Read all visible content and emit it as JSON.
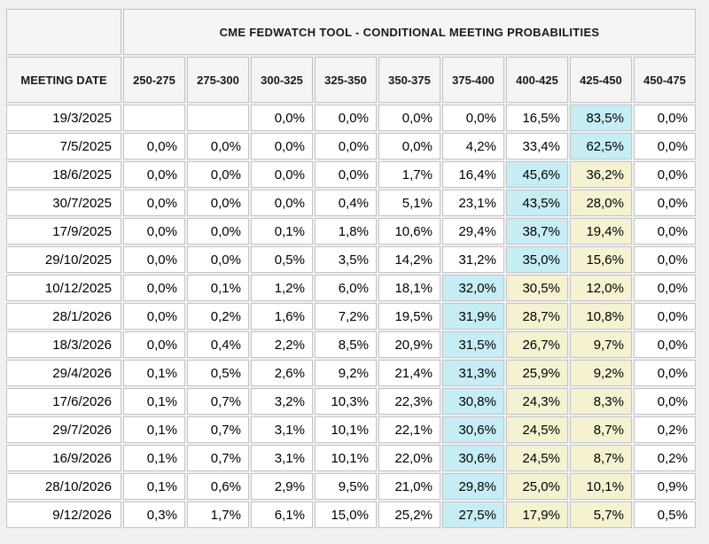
{
  "page": {
    "background_color": "#f0f0f1"
  },
  "colors": {
    "page_bg": "#f0f0f1",
    "header_bg": "#f5f5f6",
    "cell_bg": "#ffffff",
    "cell_border": "#c3c3c7",
    "blue_highlight": "#c6edf4",
    "yellow_highlight": "#f5f2d2",
    "text": "#000000"
  },
  "chart_data": {
    "type": "table",
    "title": "CME FEDWATCH TOOL - CONDITIONAL MEETING PROBABILITIES",
    "date_column_header": "MEETING DATE",
    "rate_columns": [
      "250-275",
      "275-300",
      "300-325",
      "325-350",
      "350-375",
      "375-400",
      "400-425",
      "425-450",
      "450-475"
    ],
    "value_format": "percent with comma decimal separator",
    "rows": [
      {
        "date": "19/3/2025",
        "values": [
          "",
          "",
          "0,0%",
          "0,0%",
          "0,0%",
          "0,0%",
          "16,5%",
          "83,5%",
          "0,0%"
        ],
        "highlights": [
          "",
          "",
          "",
          "",
          "",
          "",
          "",
          "blue",
          ""
        ]
      },
      {
        "date": "7/5/2025",
        "values": [
          "0,0%",
          "0,0%",
          "0,0%",
          "0,0%",
          "0,0%",
          "4,2%",
          "33,4%",
          "62,5%",
          "0,0%"
        ],
        "highlights": [
          "",
          "",
          "",
          "",
          "",
          "",
          "",
          "blue",
          ""
        ]
      },
      {
        "date": "18/6/2025",
        "values": [
          "0,0%",
          "0,0%",
          "0,0%",
          "0,0%",
          "1,7%",
          "16,4%",
          "45,6%",
          "36,2%",
          "0,0%"
        ],
        "highlights": [
          "",
          "",
          "",
          "",
          "",
          "",
          "blue",
          "yellow",
          ""
        ]
      },
      {
        "date": "30/7/2025",
        "values": [
          "0,0%",
          "0,0%",
          "0,0%",
          "0,4%",
          "5,1%",
          "23,1%",
          "43,5%",
          "28,0%",
          "0,0%"
        ],
        "highlights": [
          "",
          "",
          "",
          "",
          "",
          "",
          "blue",
          "yellow",
          ""
        ]
      },
      {
        "date": "17/9/2025",
        "values": [
          "0,0%",
          "0,0%",
          "0,1%",
          "1,8%",
          "10,6%",
          "29,4%",
          "38,7%",
          "19,4%",
          "0,0%"
        ],
        "highlights": [
          "",
          "",
          "",
          "",
          "",
          "",
          "blue",
          "yellow",
          ""
        ]
      },
      {
        "date": "29/10/2025",
        "values": [
          "0,0%",
          "0,0%",
          "0,5%",
          "3,5%",
          "14,2%",
          "31,2%",
          "35,0%",
          "15,6%",
          "0,0%"
        ],
        "highlights": [
          "",
          "",
          "",
          "",
          "",
          "",
          "blue",
          "yellow",
          ""
        ]
      },
      {
        "date": "10/12/2025",
        "values": [
          "0,0%",
          "0,1%",
          "1,2%",
          "6,0%",
          "18,1%",
          "32,0%",
          "30,5%",
          "12,0%",
          "0,0%"
        ],
        "highlights": [
          "",
          "",
          "",
          "",
          "",
          "blue",
          "yellow",
          "yellow",
          ""
        ]
      },
      {
        "date": "28/1/2026",
        "values": [
          "0,0%",
          "0,2%",
          "1,6%",
          "7,2%",
          "19,5%",
          "31,9%",
          "28,7%",
          "10,8%",
          "0,0%"
        ],
        "highlights": [
          "",
          "",
          "",
          "",
          "",
          "blue",
          "yellow",
          "yellow",
          ""
        ]
      },
      {
        "date": "18/3/2026",
        "values": [
          "0,0%",
          "0,4%",
          "2,2%",
          "8,5%",
          "20,9%",
          "31,5%",
          "26,7%",
          "9,7%",
          "0,0%"
        ],
        "highlights": [
          "",
          "",
          "",
          "",
          "",
          "blue",
          "yellow",
          "yellow",
          ""
        ]
      },
      {
        "date": "29/4/2026",
        "values": [
          "0,1%",
          "0,5%",
          "2,6%",
          "9,2%",
          "21,4%",
          "31,3%",
          "25,9%",
          "9,2%",
          "0,0%"
        ],
        "highlights": [
          "",
          "",
          "",
          "",
          "",
          "blue",
          "yellow",
          "yellow",
          ""
        ]
      },
      {
        "date": "17/6/2026",
        "values": [
          "0,1%",
          "0,7%",
          "3,2%",
          "10,3%",
          "22,3%",
          "30,8%",
          "24,3%",
          "8,3%",
          "0,0%"
        ],
        "highlights": [
          "",
          "",
          "",
          "",
          "",
          "blue",
          "yellow",
          "yellow",
          ""
        ]
      },
      {
        "date": "29/7/2026",
        "values": [
          "0,1%",
          "0,7%",
          "3,1%",
          "10,1%",
          "22,1%",
          "30,6%",
          "24,5%",
          "8,7%",
          "0,2%"
        ],
        "highlights": [
          "",
          "",
          "",
          "",
          "",
          "blue",
          "yellow",
          "yellow",
          ""
        ]
      },
      {
        "date": "16/9/2026",
        "values": [
          "0,1%",
          "0,7%",
          "3,1%",
          "10,1%",
          "22,0%",
          "30,6%",
          "24,5%",
          "8,7%",
          "0,2%"
        ],
        "highlights": [
          "",
          "",
          "",
          "",
          "",
          "blue",
          "yellow",
          "yellow",
          ""
        ]
      },
      {
        "date": "28/10/2026",
        "values": [
          "0,1%",
          "0,6%",
          "2,9%",
          "9,5%",
          "21,0%",
          "29,8%",
          "25,0%",
          "10,1%",
          "0,9%"
        ],
        "highlights": [
          "",
          "",
          "",
          "",
          "",
          "blue",
          "yellow",
          "yellow",
          ""
        ]
      },
      {
        "date": "9/12/2026",
        "values": [
          "0,3%",
          "1,7%",
          "6,1%",
          "15,0%",
          "25,2%",
          "27,5%",
          "17,9%",
          "5,7%",
          "0,5%"
        ],
        "highlights": [
          "",
          "",
          "",
          "",
          "",
          "blue",
          "yellow",
          "yellow",
          ""
        ]
      }
    ]
  }
}
